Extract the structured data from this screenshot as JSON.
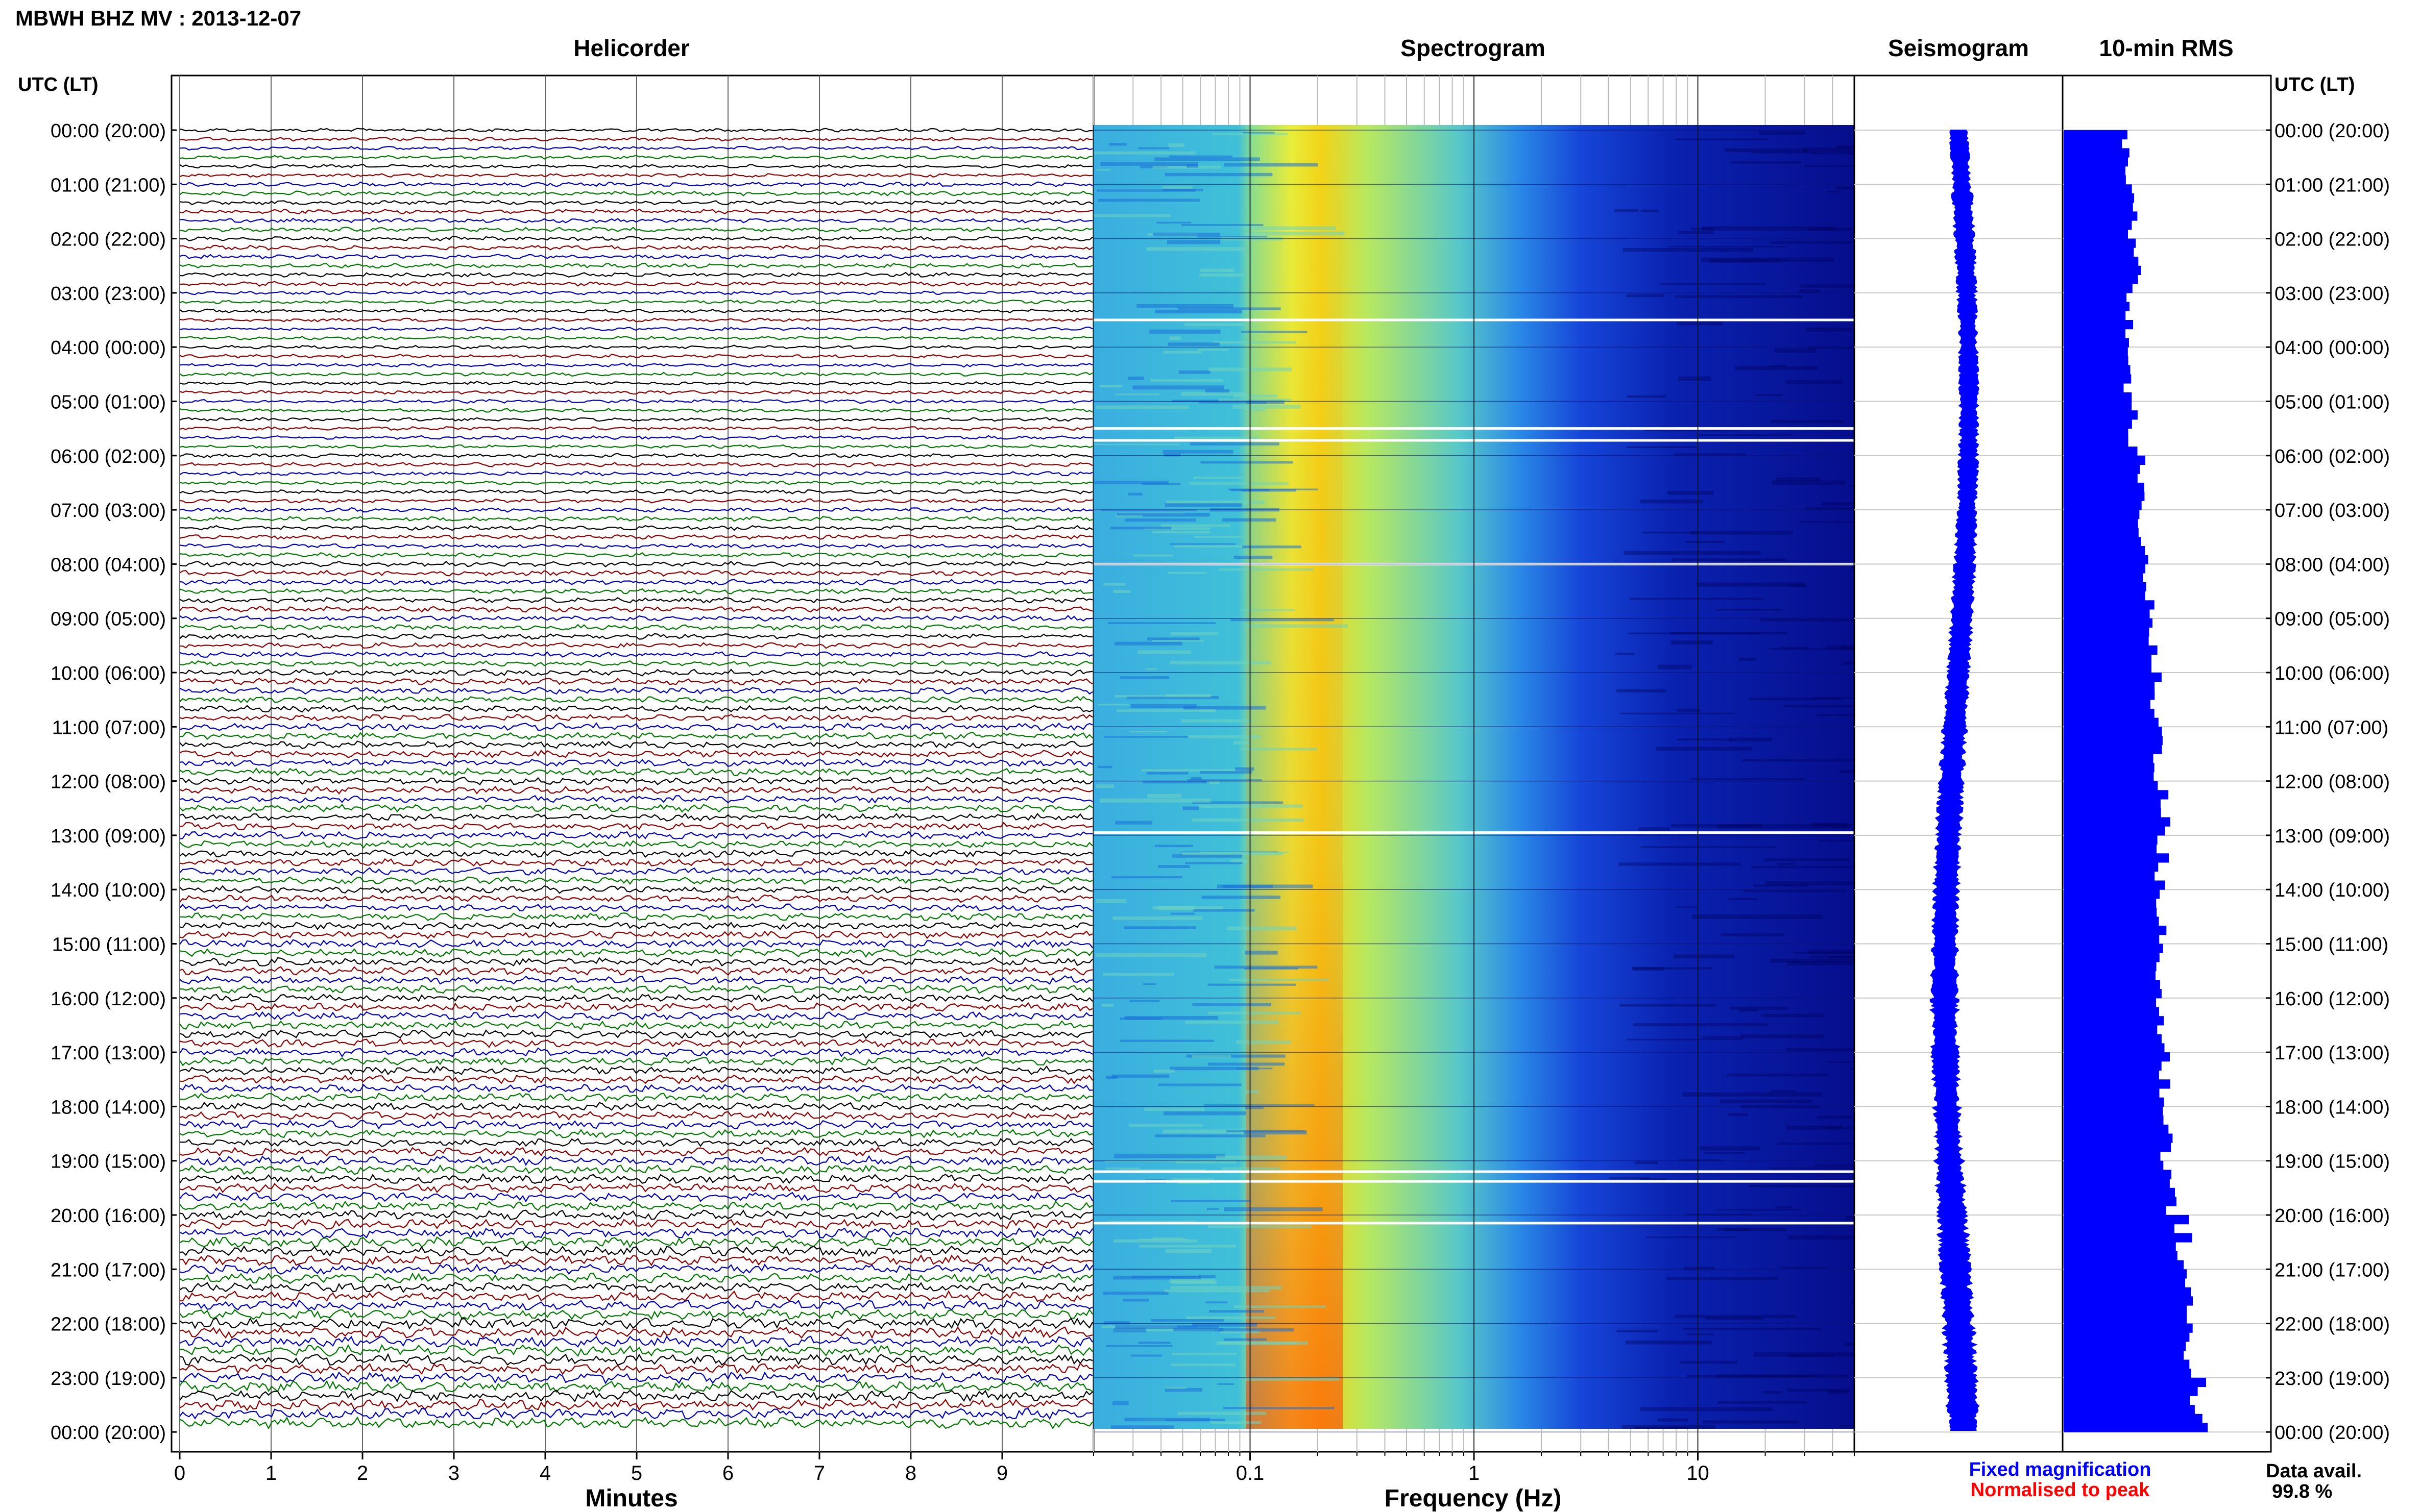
{
  "header": {
    "station_title": "MBWH BHZ MV : 2013-12-07",
    "left_time_header": "UTC (LT)",
    "right_time_header": "UTC (LT)"
  },
  "panels": {
    "helicorder": "Helicorder",
    "spectrogram": "Spectrogram",
    "seismogram": "Seismogram",
    "rms": "10-min RMS"
  },
  "footer": {
    "helicorder_xlabel": "Minutes",
    "spectrogram_xlabel": "Frequency (Hz)",
    "legend_fixed": "Fixed magnification",
    "legend_normalised": "Normalised to peak",
    "data_avail_label": "Data avail.",
    "data_avail_value": "99.8 %"
  },
  "colors": {
    "trace_cycle": [
      "#000000",
      "#8b0000",
      "#0000b4",
      "#007800"
    ],
    "seismogram": "#0000ff",
    "rms_bars": "#0000ff",
    "legend_fixed": "#0000ff",
    "legend_normalised": "#ff0000",
    "spectrogram_low": "#00007a",
    "spectrogram_high": "#ff3000"
  },
  "chart_data": [
    {
      "type": "line",
      "name": "helicorder",
      "title": "Helicorder",
      "xlabel": "Minutes",
      "xlim": [
        0,
        10
      ],
      "x_ticks": [
        "0",
        "1",
        "2",
        "3",
        "4",
        "5",
        "6",
        "7",
        "8",
        "9"
      ],
      "y_ticks_left": [
        "00:00 (20:00)",
        "01:00 (21:00)",
        "02:00 (22:00)",
        "03:00 (23:00)",
        "04:00 (00:00)",
        "05:00 (01:00)",
        "06:00 (02:00)",
        "07:00 (03:00)",
        "08:00 (04:00)",
        "09:00 (05:00)",
        "10:00 (06:00)",
        "11:00 (07:00)",
        "12:00 (08:00)",
        "13:00 (09:00)",
        "14:00 (10:00)",
        "15:00 (11:00)",
        "16:00 (12:00)",
        "17:00 (13:00)",
        "18:00 (14:00)",
        "19:00 (15:00)",
        "20:00 (16:00)",
        "21:00 (17:00)",
        "22:00 (18:00)",
        "23:00 (19:00)",
        "00:00 (20:00)"
      ],
      "traces_per_hour": 6,
      "amplitude_by_hour": [
        0.4,
        0.5,
        0.5,
        0.4,
        0.4,
        0.4,
        0.45,
        0.5,
        0.6,
        0.6,
        0.7,
        0.8,
        0.8,
        0.8,
        0.8,
        0.9,
        0.9,
        0.9,
        0.9,
        1.0,
        1.1,
        1.1,
        1.2,
        1.2
      ]
    },
    {
      "type": "heatmap",
      "name": "spectrogram",
      "title": "Spectrogram",
      "xlabel": "Frequency (Hz)",
      "x_scale": "log",
      "xlim": [
        0.02,
        50
      ],
      "x_ticks": [
        "0.1",
        "1",
        "10"
      ],
      "peak_frequency_hz": 0.22,
      "data_gaps_utc_hours": [
        3.5,
        5.5,
        5.72,
        8.0,
        12.95,
        19.2,
        19.38,
        20.15
      ]
    },
    {
      "type": "line",
      "name": "seismogram",
      "title": "Seismogram",
      "note": "Fixed magnification / Normalised to peak"
    },
    {
      "type": "bar",
      "name": "rms",
      "title": "10-min RMS",
      "orientation": "horizontal",
      "bins_per_hour": 6,
      "relative_level_by_hour": [
        0.4,
        0.45,
        0.47,
        0.43,
        0.42,
        0.45,
        0.5,
        0.52,
        0.55,
        0.58,
        0.6,
        0.63,
        0.65,
        0.64,
        0.63,
        0.62,
        0.64,
        0.66,
        0.68,
        0.7,
        0.78,
        0.8,
        0.84,
        0.88
      ]
    }
  ]
}
